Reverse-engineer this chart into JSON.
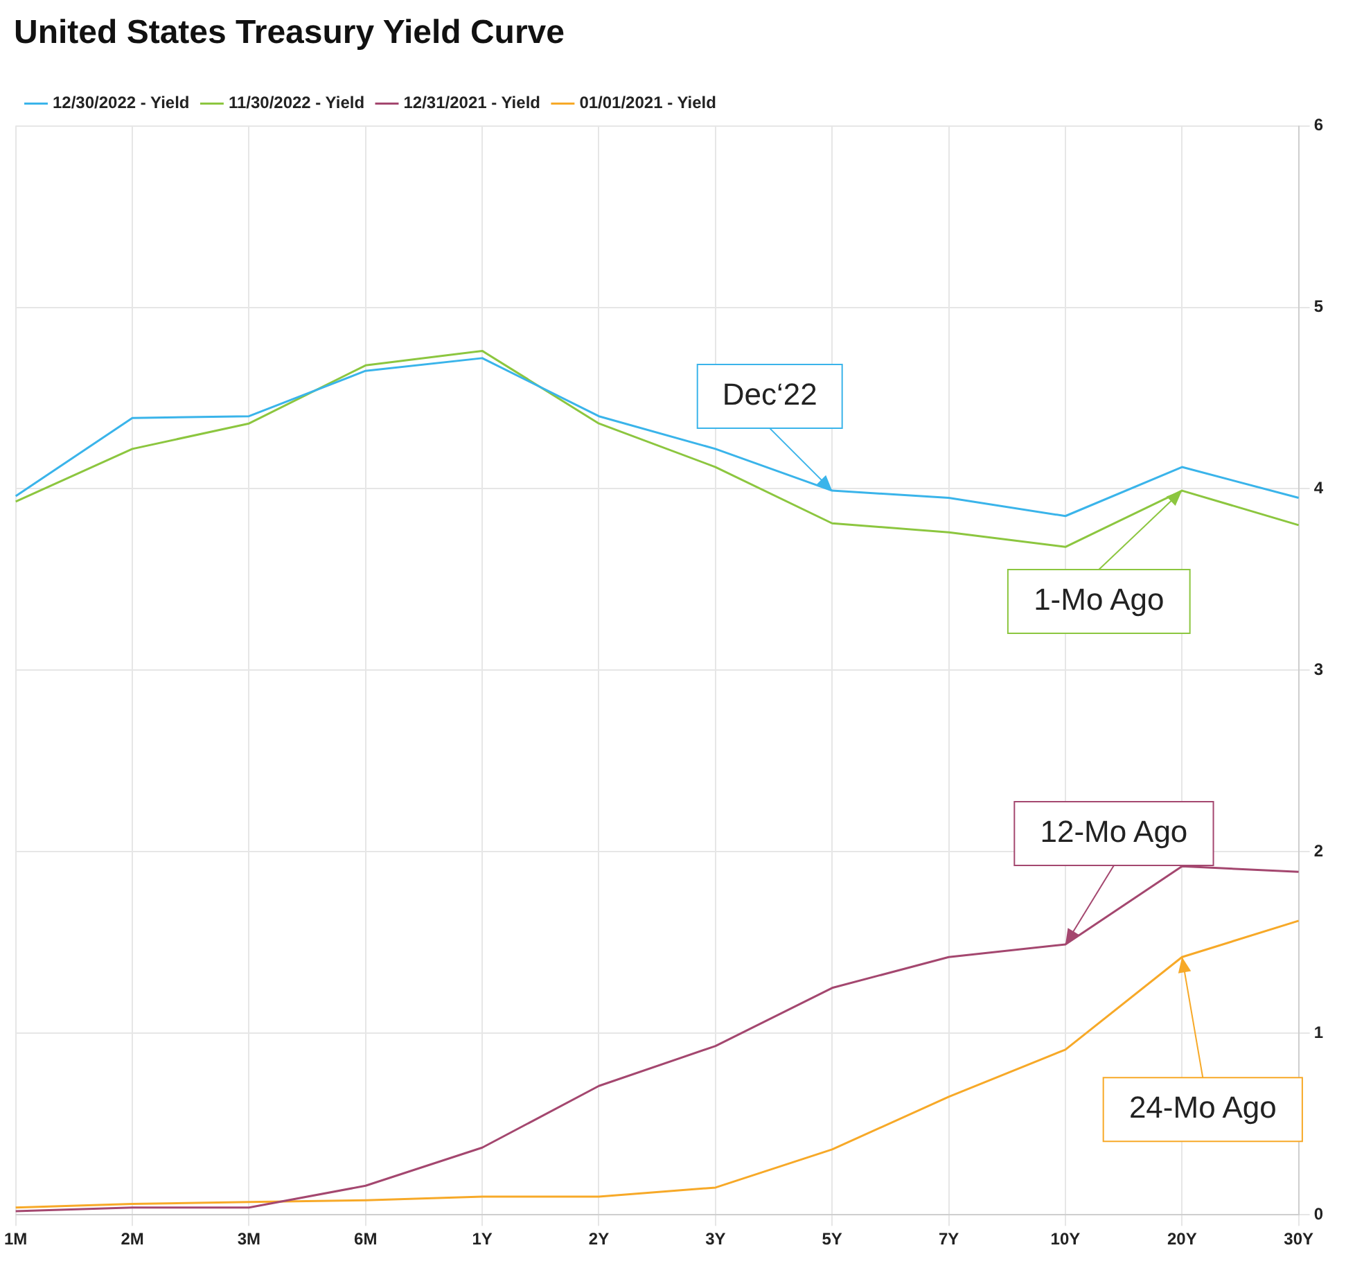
{
  "chart_data": {
    "type": "line",
    "title": "United States Treasury Yield Curve",
    "categories": [
      "1M",
      "2M",
      "3M",
      "6M",
      "1Y",
      "2Y",
      "3Y",
      "5Y",
      "7Y",
      "10Y",
      "20Y",
      "30Y"
    ],
    "series": [
      {
        "name": "12/30/2022 - Yield",
        "color": "#3ab4ea",
        "values": [
          3.96,
          4.39,
          4.4,
          4.65,
          4.72,
          4.4,
          4.22,
          3.99,
          3.95,
          3.85,
          4.12,
          3.95
        ]
      },
      {
        "name": "11/30/2022 - Yield",
        "color": "#8cc63f",
        "values": [
          3.93,
          4.22,
          4.36,
          4.68,
          4.76,
          4.36,
          4.12,
          3.81,
          3.76,
          3.68,
          3.99,
          3.8
        ]
      },
      {
        "name": "12/31/2021 - Yield",
        "color": "#a4476f",
        "values": [
          0.02,
          0.04,
          0.04,
          0.16,
          0.37,
          0.71,
          0.93,
          1.25,
          1.42,
          1.49,
          1.92,
          1.89
        ]
      },
      {
        "name": "01/01/2021 - Yield",
        "color": "#f7a928",
        "values": [
          0.04,
          0.06,
          0.07,
          0.08,
          0.1,
          0.1,
          0.15,
          0.36,
          0.65,
          0.91,
          1.42,
          1.62
        ]
      }
    ],
    "ylim": [
      0,
      6
    ],
    "yticks": [
      0,
      1,
      2,
      3,
      4,
      5,
      6
    ],
    "grid": true,
    "legend": "top left",
    "marker": "none",
    "line_style": "solid",
    "annotations": [
      {
        "text": "Dec‘22",
        "x": "5Y",
        "y": 3.99
      },
      {
        "text": "1-Mo Ago",
        "x": "20Y",
        "y": 3.99
      },
      {
        "text": "12-Mo Ago",
        "x": "10Y",
        "y": 1.49
      },
      {
        "text": "24-Mo Ago",
        "x": "20Y",
        "y": 1.42
      }
    ]
  }
}
